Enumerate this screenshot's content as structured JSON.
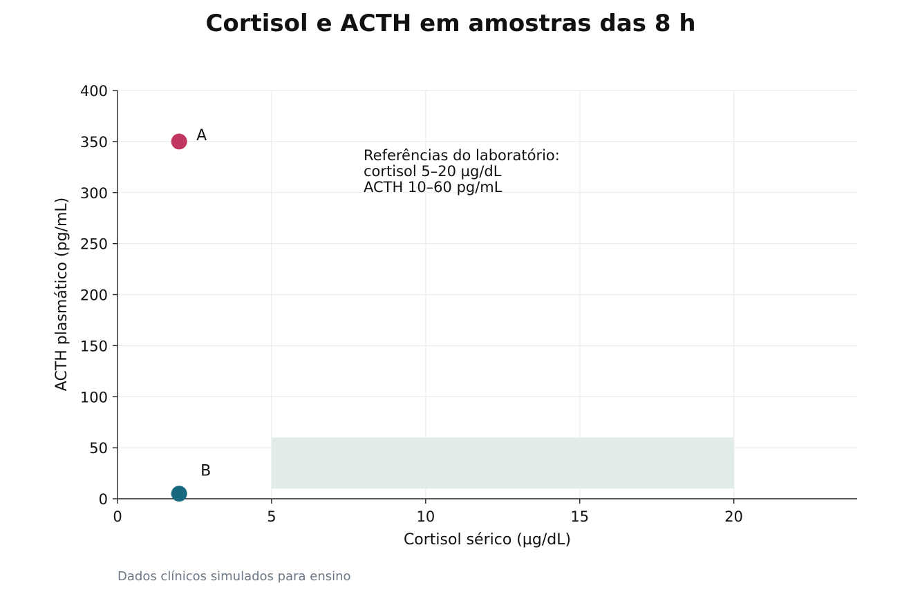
{
  "chart_data": {
    "type": "scatter",
    "title": "Cortisol e ACTH em amostras das 8 h",
    "xlabel": "Cortisol sérico (µg/dL)",
    "ylabel": "ACTH plasmático (pg/mL)",
    "xlim": [
      0,
      24
    ],
    "ylim": [
      0,
      400
    ],
    "xticks": [
      0,
      5,
      10,
      15,
      20
    ],
    "yticks": [
      0,
      50,
      100,
      150,
      200,
      250,
      300,
      350,
      400
    ],
    "grid": true,
    "reference_region": {
      "x": [
        5,
        20
      ],
      "y": [
        10,
        60
      ],
      "color": "#e1ece6"
    },
    "annotation": [
      "Referências do laboratório:",
      "cortisol 5–20 µg/dL",
      "ACTH 10–60 pg/mL"
    ],
    "points": [
      {
        "label": "A",
        "x": 2,
        "y": 350,
        "color": "#c0375f"
      },
      {
        "label": "B",
        "x": 2,
        "y": 5,
        "color": "#17677f"
      }
    ],
    "source_note": "Dados clínicos simulados para ensino"
  }
}
